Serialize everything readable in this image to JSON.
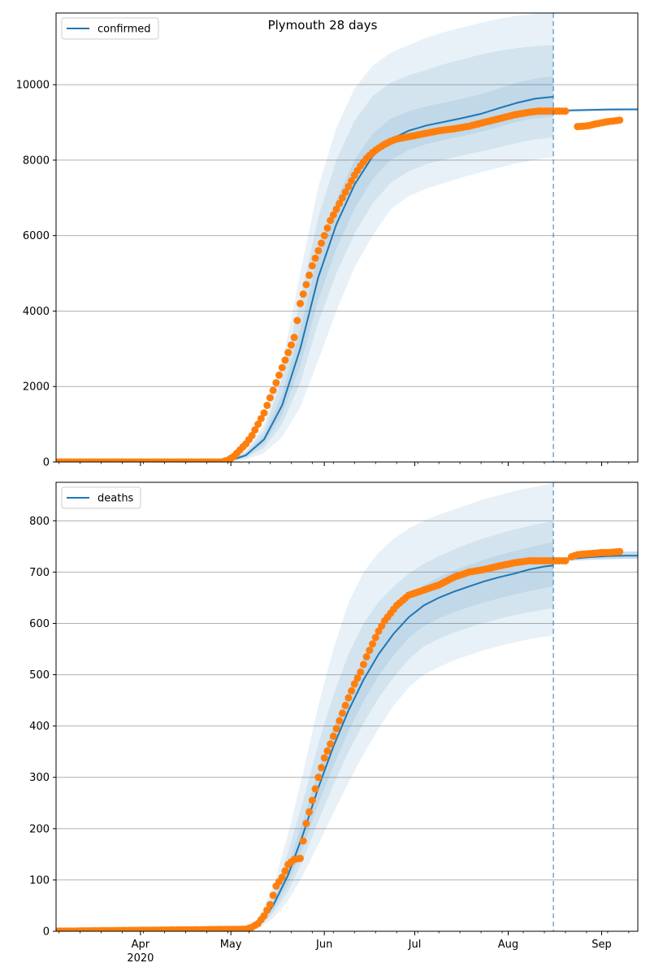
{
  "chart_data": [
    {
      "type": "line",
      "title": "Plymouth 28 days",
      "legend": {
        "label": "confirmed",
        "placement": "top-left"
      },
      "ylim": [
        0,
        11900
      ],
      "yticks": [
        0,
        2000,
        4000,
        6000,
        8000,
        10000
      ],
      "grid": "horizontal",
      "forecast_start_day": 168,
      "model": {
        "day": [
          0,
          60,
          66,
          72,
          78,
          84,
          90,
          96,
          102,
          108,
          114,
          120,
          126,
          132,
          138,
          144,
          150,
          156,
          162,
          168
        ],
        "median": [
          0,
          20,
          180,
          600,
          1500,
          3000,
          4900,
          6300,
          7350,
          8100,
          8550,
          8780,
          8920,
          9020,
          9120,
          9230,
          9380,
          9520,
          9630,
          9680
        ]
      },
      "bands": [
        {
          "lower": [
            0,
            0,
            60,
            230,
            660,
            1450,
            2700,
            4000,
            5150,
            6000,
            6700,
            7050,
            7250,
            7400,
            7550,
            7680,
            7800,
            7920,
            8020,
            8080
          ],
          "upper": [
            0,
            40,
            300,
            1000,
            2600,
            5000,
            7300,
            8850,
            9900,
            10500,
            10850,
            11050,
            11250,
            11400,
            11520,
            11640,
            11750,
            11830,
            11880,
            11900
          ]
        },
        {
          "lower": [
            0,
            5,
            100,
            370,
            1000,
            2100,
            3700,
            5000,
            6050,
            6850,
            7400,
            7700,
            7900,
            8020,
            8130,
            8230,
            8340,
            8460,
            8550,
            8600
          ],
          "upper": [
            0,
            35,
            260,
            850,
            2200,
            4300,
            6500,
            8000,
            9050,
            9700,
            10050,
            10250,
            10400,
            10550,
            10680,
            10800,
            10900,
            10970,
            11020,
            11050
          ]
        },
        {
          "lower": [
            0,
            12,
            140,
            480,
            1250,
            2550,
            4300,
            5650,
            6700,
            7500,
            8000,
            8270,
            8430,
            8540,
            8640,
            8750,
            8880,
            9020,
            9110,
            9150
          ],
          "upper": [
            0,
            28,
            220,
            720,
            1800,
            3500,
            5500,
            6950,
            8000,
            8700,
            9100,
            9300,
            9430,
            9530,
            9630,
            9750,
            9900,
            10060,
            10160,
            10220
          ]
        }
      ],
      "forecast": {
        "day": [
          168,
          174,
          180,
          186,
          192,
          198
        ],
        "median": [
          9300,
          9320,
          9330,
          9340,
          9345,
          9345
        ],
        "lower": [
          9280,
          9290,
          9300,
          9310,
          9310,
          9310
        ],
        "upper": [
          9320,
          9350,
          9365,
          9375,
          9380,
          9380
        ]
      },
      "observed": {
        "day": [
          0,
          58,
          60,
          62,
          64,
          66,
          68,
          70,
          72,
          74,
          76,
          78,
          80,
          82,
          84,
          86,
          88,
          90,
          92,
          94,
          96,
          98,
          100,
          102,
          104,
          106,
          108,
          110,
          112,
          114,
          116,
          120,
          125,
          130,
          135,
          140,
          145,
          150,
          155,
          160,
          163,
          166,
          168,
          169,
          170,
          171,
          172
        ],
        "value": [
          0,
          0,
          50,
          150,
          320,
          480,
          700,
          1000,
          1300,
          1700,
          2100,
          2500,
          2900,
          3300,
          4200,
          4700,
          5200,
          5600,
          6000,
          6400,
          6700,
          7000,
          7300,
          7600,
          7850,
          8050,
          8200,
          8320,
          8420,
          8500,
          8560,
          8620,
          8700,
          8780,
          8830,
          8900,
          9000,
          9100,
          9200,
          9270,
          9300,
          9300,
          9300,
          9300,
          9300,
          9300,
          9300
        ],
        "later_day": [
          176,
          178,
          180,
          182,
          184,
          186,
          188,
          190
        ],
        "later_value": [
          8890,
          8900,
          8920,
          8960,
          8990,
          9020,
          9040,
          9060
        ]
      }
    },
    {
      "type": "line",
      "legend": {
        "label": "deaths",
        "placement": "top-left"
      },
      "ylim": [
        0,
        875
      ],
      "yticks": [
        0,
        100,
        200,
        300,
        400,
        500,
        600,
        700,
        800
      ],
      "grid": "horizontal",
      "forecast_start_day": 168,
      "model": {
        "day": [
          0,
          65,
          70,
          75,
          80,
          85,
          90,
          95,
          100,
          105,
          110,
          115,
          120,
          125,
          130,
          135,
          140,
          145,
          150,
          155,
          160,
          165,
          168
        ],
        "median": [
          0,
          0,
          12,
          50,
          110,
          190,
          280,
          360,
          430,
          490,
          540,
          580,
          612,
          635,
          650,
          662,
          672,
          682,
          690,
          697,
          705,
          711,
          713
        ]
      },
      "bands": [
        {
          "lower": [
            0,
            0,
            5,
            25,
            60,
            110,
            170,
            230,
            290,
            345,
            395,
            440,
            475,
            500,
            515,
            528,
            538,
            548,
            556,
            563,
            569,
            574,
            576
          ],
          "upper": [
            0,
            0,
            25,
            85,
            190,
            310,
            440,
            550,
            640,
            700,
            738,
            765,
            785,
            800,
            812,
            822,
            832,
            842,
            850,
            858,
            864,
            870,
            873
          ]
        },
        {
          "lower": [
            0,
            0,
            8,
            35,
            78,
            140,
            215,
            285,
            350,
            405,
            455,
            495,
            530,
            555,
            570,
            582,
            592,
            601,
            609,
            616,
            622,
            627,
            630
          ],
          "upper": [
            0,
            0,
            18,
            70,
            155,
            255,
            365,
            460,
            540,
            600,
            642,
            672,
            697,
            716,
            731,
            744,
            756,
            766,
            775,
            783,
            790,
            796,
            800
          ]
        },
        {
          "lower": [
            0,
            0,
            10,
            42,
            93,
            165,
            248,
            322,
            390,
            448,
            498,
            538,
            572,
            595,
            610,
            622,
            632,
            641,
            649,
            656,
            663,
            669,
            672
          ],
          "upper": [
            0,
            0,
            15,
            58,
            128,
            218,
            313,
            398,
            470,
            532,
            582,
            622,
            653,
            675,
            690,
            703,
            714,
            724,
            733,
            741,
            748,
            755,
            758
          ]
        }
      ],
      "forecast": {
        "day": [
          168,
          174,
          180,
          186,
          192,
          198
        ],
        "median": [
          722,
          726,
          729,
          731,
          732,
          732
        ],
        "lower": [
          719,
          722,
          724,
          725,
          726,
          726
        ],
        "upper": [
          725,
          731,
          735,
          738,
          740,
          741
        ]
      },
      "observed": {
        "day": [
          0,
          66,
          68,
          70,
          72,
          74,
          76,
          78,
          80,
          82,
          84,
          86,
          88,
          90,
          92,
          94,
          96,
          98,
          100,
          102,
          104,
          106,
          108,
          110,
          112,
          114,
          116,
          118,
          120,
          125,
          130,
          135,
          140,
          145,
          150,
          155,
          160,
          163,
          166,
          168,
          169,
          170,
          171,
          172
        ],
        "value": [
          0,
          4,
          8,
          15,
          30,
          52,
          88,
          105,
          130,
          140,
          142,
          210,
          255,
          300,
          338,
          365,
          395,
          425,
          455,
          482,
          505,
          535,
          560,
          585,
          605,
          620,
          635,
          645,
          655,
          665,
          675,
          690,
          700,
          705,
          712,
          718,
          722,
          722,
          722,
          722,
          722,
          722,
          722,
          722
        ],
        "later_day": [
          174,
          176,
          178,
          180,
          182,
          184,
          186,
          188,
          190
        ],
        "later_value": [
          730,
          734,
          735,
          736,
          737,
          738,
          738,
          739,
          740
        ]
      }
    }
  ],
  "x_axis": {
    "tick_labels": [
      "Apr",
      "May",
      "Jun",
      "Jul",
      "Aug",
      "Sep"
    ],
    "tick_days": [
      31,
      61,
      92,
      122,
      153,
      184
    ],
    "year_label": "2020",
    "xlim": [
      3,
      196
    ]
  },
  "colors": {
    "model_line": "#1f77b4",
    "band": "#1f77b4",
    "observed": "#ff7f0e",
    "grid": "#b0b0b0",
    "forecast_line": "#1f77b4"
  }
}
